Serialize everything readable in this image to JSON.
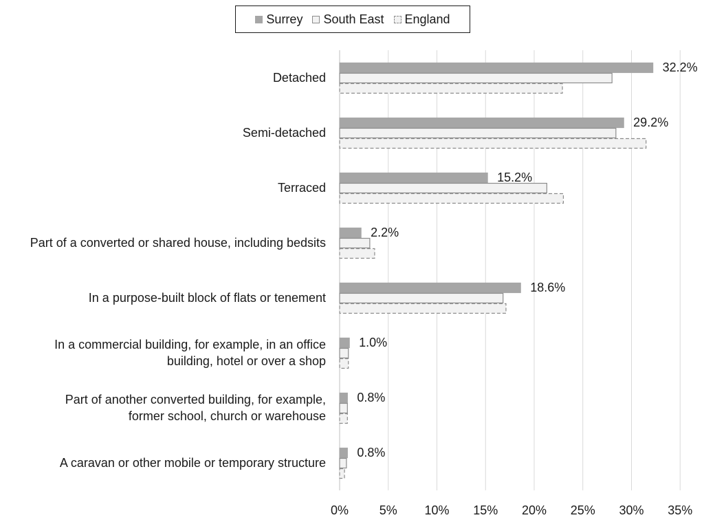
{
  "chart_data": {
    "type": "bar",
    "orientation": "horizontal",
    "categories": [
      "Detached",
      "Semi-detached",
      "Terraced",
      "Part of a converted or shared house, including bedsits",
      "In a purpose-built block of flats or tenement",
      "In a commercial building, for example, in an office building, hotel or over a shop",
      "Part of another converted building, for example, former school, church or warehouse",
      "A caravan or other mobile or temporary structure"
    ],
    "category_lines": [
      [
        "Detached"
      ],
      [
        "Semi-detached"
      ],
      [
        "Terraced"
      ],
      [
        "Part of a converted or shared house, including bedsits"
      ],
      [
        "In a purpose-built block of flats or tenement"
      ],
      [
        "In a commercial building, for example, in an office",
        "building, hotel or over a shop"
      ],
      [
        "Part of another converted building, for example,",
        "former school, church or warehouse"
      ],
      [
        "A caravan or other mobile or temporary structure"
      ]
    ],
    "series": [
      {
        "name": "Surrey",
        "values": [
          32.2,
          29.2,
          15.2,
          2.2,
          18.6,
          1.0,
          0.8,
          0.8
        ],
        "color": "#a6a6a6",
        "labeled": true
      },
      {
        "name": "South East",
        "values": [
          28.0,
          28.4,
          21.3,
          3.1,
          16.8,
          0.9,
          0.8,
          0.7
        ],
        "color": "#f2f2f2",
        "labeled": false
      },
      {
        "name": "England",
        "values": [
          22.9,
          31.5,
          23.0,
          3.6,
          17.1,
          0.9,
          0.8,
          0.5
        ],
        "color": "#f2f2f2",
        "labeled": false
      }
    ],
    "data_labels": [
      "32.2%",
      "29.2%",
      "15.2%",
      "2.2%",
      "18.6%",
      "1.0%",
      "0.8%",
      "0.8%"
    ],
    "xticks": [
      "0%",
      "5%",
      "10%",
      "15%",
      "20%",
      "25%",
      "30%",
      "35%"
    ],
    "xlim": [
      0,
      35
    ],
    "grid": true,
    "legend_position": "top-center"
  },
  "legend": {
    "surrey": "Surrey",
    "south_east": "South East",
    "england": "England"
  },
  "colors": {
    "surrey_fill": "#a6a6a6",
    "region_fill": "#f2f2f2",
    "outline": "#8c8c8c",
    "grid": "#d9d9d9"
  }
}
